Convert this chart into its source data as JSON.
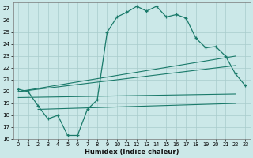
{
  "title": "",
  "xlabel": "Humidex (Indice chaleur)",
  "bg_color": "#cbe8e8",
  "grid_color": "#a8cccc",
  "line_color": "#1a7a6a",
  "xlim": [
    -0.5,
    23.5
  ],
  "ylim": [
    16,
    27.5
  ],
  "xticks": [
    0,
    1,
    2,
    3,
    4,
    5,
    6,
    7,
    8,
    9,
    10,
    11,
    12,
    13,
    14,
    15,
    16,
    17,
    18,
    19,
    20,
    21,
    22,
    23
  ],
  "yticks": [
    16,
    17,
    18,
    19,
    20,
    21,
    22,
    23,
    24,
    25,
    26,
    27
  ],
  "main_x": [
    0,
    1,
    2,
    3,
    4,
    5,
    6,
    7,
    8,
    9,
    10,
    11,
    12,
    13,
    14,
    15,
    16,
    17,
    18,
    19,
    20,
    21,
    22,
    23
  ],
  "main_y": [
    20.2,
    20.0,
    18.8,
    17.7,
    18.0,
    16.3,
    16.3,
    18.5,
    19.3,
    25.0,
    26.3,
    26.7,
    27.2,
    26.8,
    27.2,
    26.3,
    26.5,
    26.2,
    24.5,
    23.7,
    23.8,
    23.0,
    21.5,
    20.5
  ],
  "straight_lines": [
    {
      "x": [
        0,
        22
      ],
      "y": [
        20.0,
        23.0
      ]
    },
    {
      "x": [
        0,
        22
      ],
      "y": [
        20.0,
        22.2
      ]
    },
    {
      "x": [
        0,
        22
      ],
      "y": [
        19.5,
        19.8
      ]
    },
    {
      "x": [
        2,
        22
      ],
      "y": [
        18.5,
        19.0
      ]
    }
  ]
}
